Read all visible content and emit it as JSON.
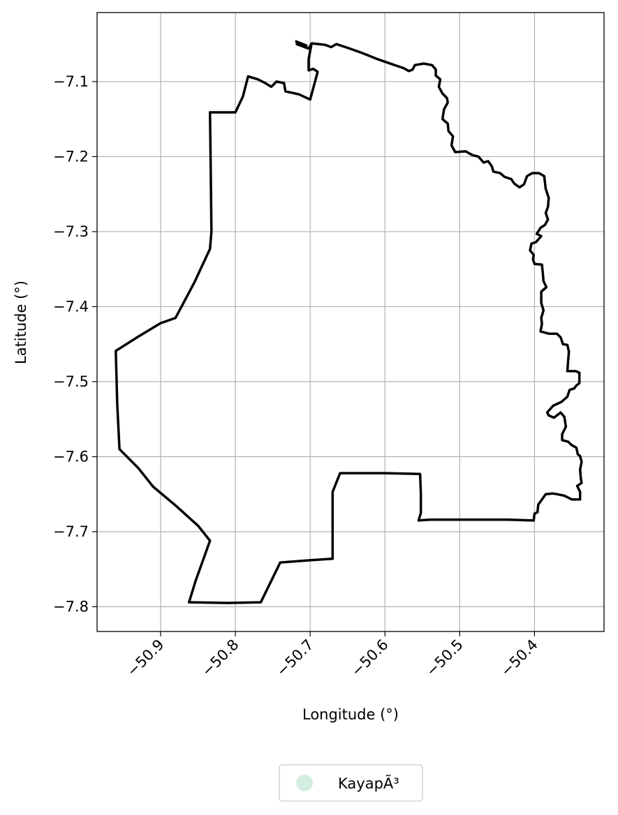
{
  "chart_data": {
    "type": "map",
    "xlabel": "Longitude (°)",
    "ylabel": "Latitude (°)",
    "xlim": [
      -50.985,
      -50.307
    ],
    "ylim": [
      -7.833,
      -7.008
    ],
    "x_ticks": [
      {
        "value": -50.9,
        "label": "−50.9"
      },
      {
        "value": -50.8,
        "label": "−50.8"
      },
      {
        "value": -50.7,
        "label": "−50.7"
      },
      {
        "value": -50.6,
        "label": "−50.6"
      },
      {
        "value": -50.5,
        "label": "−50.5"
      },
      {
        "value": -50.4,
        "label": "−50.4"
      }
    ],
    "y_ticks": [
      {
        "value": -7.1,
        "label": "−7.1"
      },
      {
        "value": -7.2,
        "label": "−7.2"
      },
      {
        "value": -7.3,
        "label": "−7.3"
      },
      {
        "value": -7.4,
        "label": "−7.4"
      },
      {
        "value": -7.5,
        "label": "−7.5"
      },
      {
        "value": -7.6,
        "label": "−7.6"
      },
      {
        "value": -7.7,
        "label": "−7.7"
      },
      {
        "value": -7.8,
        "label": "−7.8"
      }
    ],
    "grid": true,
    "legend": {
      "placement": "bottom-center",
      "entries": [
        {
          "label": "KayapÃ³",
          "color": "#d3ede1"
        }
      ]
    },
    "boundary_color": "#000000",
    "boundary": [
      [
        -50.72,
        -7.046
      ],
      [
        -50.705,
        -7.052
      ],
      [
        -50.718,
        -7.05
      ],
      [
        -50.705,
        -7.055
      ],
      [
        -50.702,
        -7.056
      ],
      [
        -50.698,
        -7.049
      ],
      [
        -50.68,
        -7.051
      ],
      [
        -50.672,
        -7.054
      ],
      [
        -50.665,
        -7.05
      ],
      [
        -50.65,
        -7.055
      ],
      [
        -50.63,
        -7.062
      ],
      [
        -50.61,
        -7.07
      ],
      [
        -50.59,
        -7.077
      ],
      [
        -50.575,
        -7.082
      ],
      [
        -50.568,
        -7.086
      ],
      [
        -50.563,
        -7.084
      ],
      [
        -50.56,
        -7.078
      ],
      [
        -50.548,
        -7.076
      ],
      [
        -50.537,
        -7.078
      ],
      [
        -50.532,
        -7.084
      ],
      [
        -50.532,
        -7.092
      ],
      [
        -50.526,
        -7.097
      ],
      [
        -50.528,
        -7.107
      ],
      [
        -50.523,
        -7.116
      ],
      [
        -50.517,
        -7.122
      ],
      [
        -50.516,
        -7.128
      ],
      [
        -50.521,
        -7.137
      ],
      [
        -50.523,
        -7.15
      ],
      [
        -50.516,
        -7.156
      ],
      [
        -50.515,
        -7.166
      ],
      [
        -50.509,
        -7.173
      ],
      [
        -50.511,
        -7.185
      ],
      [
        -50.506,
        -7.194
      ],
      [
        -50.492,
        -7.193
      ],
      [
        -50.483,
        -7.198
      ],
      [
        -50.475,
        -7.2
      ],
      [
        -50.468,
        -7.208
      ],
      [
        -50.462,
        -7.206
      ],
      [
        -50.457,
        -7.213
      ],
      [
        -50.455,
        -7.22
      ],
      [
        -50.446,
        -7.222
      ],
      [
        -50.44,
        -7.227
      ],
      [
        -50.431,
        -7.23
      ],
      [
        -50.427,
        -7.236
      ],
      [
        -50.42,
        -7.241
      ],
      [
        -50.414,
        -7.237
      ],
      [
        -50.41,
        -7.226
      ],
      [
        -50.403,
        -7.222
      ],
      [
        -50.394,
        -7.222
      ],
      [
        -50.387,
        -7.226
      ],
      [
        -50.385,
        -7.243
      ],
      [
        -50.381,
        -7.255
      ],
      [
        -50.382,
        -7.267
      ],
      [
        -50.385,
        -7.275
      ],
      [
        -50.382,
        -7.284
      ],
      [
        -50.386,
        -7.291
      ],
      [
        -50.392,
        -7.295
      ],
      [
        -50.397,
        -7.303
      ],
      [
        -50.391,
        -7.306
      ],
      [
        -50.398,
        -7.314
      ],
      [
        -50.404,
        -7.316
      ],
      [
        -50.406,
        -7.325
      ],
      [
        -50.401,
        -7.331
      ],
      [
        -50.402,
        -7.337
      ],
      [
        -50.4,
        -7.343
      ],
      [
        -50.39,
        -7.344
      ],
      [
        -50.389,
        -7.354
      ],
      [
        -50.388,
        -7.366
      ],
      [
        -50.384,
        -7.374
      ],
      [
        -50.391,
        -7.38
      ],
      [
        -50.391,
        -7.395
      ],
      [
        -50.388,
        -7.405
      ],
      [
        -50.391,
        -7.415
      ],
      [
        -50.39,
        -7.423
      ],
      [
        -50.392,
        -7.433
      ],
      [
        -50.381,
        -7.436
      ],
      [
        -50.37,
        -7.436
      ],
      [
        -50.365,
        -7.441
      ],
      [
        -50.362,
        -7.45
      ],
      [
        -50.356,
        -7.451
      ],
      [
        -50.354,
        -7.46
      ],
      [
        -50.355,
        -7.472
      ],
      [
        -50.356,
        -7.486
      ],
      [
        -50.345,
        -7.486
      ],
      [
        -50.34,
        -7.488
      ],
      [
        -50.34,
        -7.502
      ],
      [
        -50.344,
        -7.505
      ],
      [
        -50.347,
        -7.509
      ],
      [
        -50.353,
        -7.511
      ],
      [
        -50.356,
        -7.52
      ],
      [
        -50.364,
        -7.527
      ],
      [
        -50.375,
        -7.532
      ],
      [
        -50.383,
        -7.541
      ],
      [
        -50.381,
        -7.545
      ],
      [
        -50.374,
        -7.548
      ],
      [
        -50.365,
        -7.541
      ],
      [
        -50.36,
        -7.547
      ],
      [
        -50.358,
        -7.56
      ],
      [
        -50.363,
        -7.57
      ],
      [
        -50.363,
        -7.578
      ],
      [
        -50.355,
        -7.58
      ],
      [
        -50.351,
        -7.584
      ],
      [
        -50.344,
        -7.588
      ],
      [
        -50.342,
        -7.597
      ],
      [
        -50.339,
        -7.599
      ],
      [
        -50.337,
        -7.607
      ],
      [
        -50.339,
        -7.617
      ],
      [
        -50.338,
        -7.629
      ],
      [
        -50.337,
        -7.635
      ],
      [
        -50.343,
        -7.639
      ],
      [
        -50.339,
        -7.647
      ],
      [
        -50.339,
        -7.657
      ],
      [
        -50.35,
        -7.657
      ],
      [
        -50.36,
        -7.652
      ],
      [
        -50.37,
        -7.65
      ],
      [
        -50.376,
        -7.649
      ],
      [
        -50.385,
        -7.65
      ],
      [
        -50.395,
        -7.664
      ],
      [
        -50.396,
        -7.674
      ],
      [
        -50.4,
        -7.676
      ],
      [
        -50.401,
        -7.685
      ],
      [
        -50.435,
        -7.684
      ],
      [
        -50.49,
        -7.684
      ],
      [
        -50.54,
        -7.684
      ],
      [
        -50.555,
        -7.685
      ],
      [
        -50.552,
        -7.675
      ],
      [
        -50.552,
        -7.65
      ],
      [
        -50.553,
        -7.623
      ],
      [
        -50.6,
        -7.622
      ],
      [
        -50.66,
        -7.622
      ],
      [
        -50.67,
        -7.647
      ],
      [
        -50.67,
        -7.69
      ],
      [
        -50.67,
        -7.736
      ],
      [
        -50.7,
        -7.738
      ],
      [
        -50.74,
        -7.741
      ],
      [
        -50.766,
        -7.794
      ],
      [
        -50.81,
        -7.795
      ],
      [
        -50.862,
        -7.794
      ],
      [
        -50.853,
        -7.765
      ],
      [
        -50.843,
        -7.737
      ],
      [
        -50.834,
        -7.712
      ],
      [
        -50.85,
        -7.692
      ],
      [
        -50.88,
        -7.665
      ],
      [
        -50.91,
        -7.64
      ],
      [
        -50.93,
        -7.615
      ],
      [
        -50.955,
        -7.59
      ],
      [
        -50.958,
        -7.53
      ],
      [
        -50.96,
        -7.459
      ],
      [
        -50.93,
        -7.44
      ],
      [
        -50.9,
        -7.422
      ],
      [
        -50.88,
        -7.415
      ],
      [
        -50.855,
        -7.368
      ],
      [
        -50.834,
        -7.323
      ],
      [
        -50.832,
        -7.3
      ],
      [
        -50.833,
        -7.22
      ],
      [
        -50.834,
        -7.141
      ],
      [
        -50.8,
        -7.141
      ],
      [
        -50.79,
        -7.12
      ],
      [
        -50.783,
        -7.093
      ],
      [
        -50.77,
        -7.097
      ],
      [
        -50.76,
        -7.102
      ],
      [
        -50.752,
        -7.107
      ],
      [
        -50.745,
        -7.1
      ],
      [
        -50.735,
        -7.102
      ],
      [
        -50.733,
        -7.113
      ],
      [
        -50.715,
        -7.117
      ],
      [
        -50.7,
        -7.124
      ],
      [
        -50.69,
        -7.087
      ],
      [
        -50.696,
        -7.083
      ],
      [
        -50.702,
        -7.085
      ],
      [
        -50.702,
        -7.07
      ],
      [
        -50.698,
        -7.049
      ]
    ]
  }
}
